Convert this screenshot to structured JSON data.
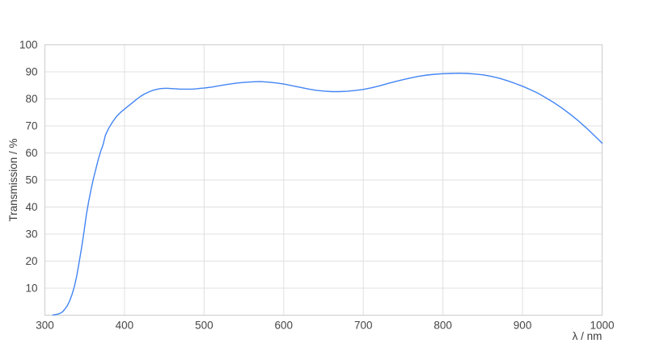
{
  "chart_data": {
    "type": "line",
    "title": "",
    "xlabel": "λ / nm",
    "ylabel": "Transmission / %",
    "xlim": [
      300,
      1000
    ],
    "ylim": [
      0,
      100
    ],
    "x_ticks": [
      300,
      400,
      500,
      600,
      700,
      800,
      900,
      1000
    ],
    "y_ticks": [
      10,
      20,
      30,
      40,
      50,
      60,
      70,
      80,
      90,
      100
    ],
    "grid": true,
    "legend": false,
    "line_color": "#4285f4",
    "series": [
      {
        "name": "Transmission",
        "points": [
          [
            310,
            0.1
          ],
          [
            313,
            0.2
          ],
          [
            316,
            0.4
          ],
          [
            319,
            0.7
          ],
          [
            322,
            1.2
          ],
          [
            325,
            2.2
          ],
          [
            328,
            3.4
          ],
          [
            331,
            5.2
          ],
          [
            334,
            7.6
          ],
          [
            337,
            10.5
          ],
          [
            340,
            14.5
          ],
          [
            343,
            19.5
          ],
          [
            346,
            24.8
          ],
          [
            349,
            30.5
          ],
          [
            352,
            37
          ],
          [
            355,
            42
          ],
          [
            358,
            46.5
          ],
          [
            361,
            50.5
          ],
          [
            364,
            54
          ],
          [
            367,
            57.5
          ],
          [
            370,
            60.5
          ],
          [
            373,
            63
          ],
          [
            376,
            66.5
          ],
          [
            380,
            69
          ],
          [
            385,
            71.5
          ],
          [
            390,
            73.5
          ],
          [
            395,
            75
          ],
          [
            400,
            76.2
          ],
          [
            405,
            77.4
          ],
          [
            410,
            78.6
          ],
          [
            415,
            79.8
          ],
          [
            420,
            80.9
          ],
          [
            425,
            81.8
          ],
          [
            430,
            82.5
          ],
          [
            435,
            83.1
          ],
          [
            440,
            83.5
          ],
          [
            445,
            83.8
          ],
          [
            450,
            83.9
          ],
          [
            455,
            83.9
          ],
          [
            460,
            83.8
          ],
          [
            465,
            83.7
          ],
          [
            470,
            83.6
          ],
          [
            475,
            83.6
          ],
          [
            480,
            83.6
          ],
          [
            485,
            83.6
          ],
          [
            490,
            83.7
          ],
          [
            495,
            83.9
          ],
          [
            500,
            84.0
          ],
          [
            510,
            84.4
          ],
          [
            520,
            84.9
          ],
          [
            530,
            85.4
          ],
          [
            540,
            85.8
          ],
          [
            550,
            86.1
          ],
          [
            560,
            86.3
          ],
          [
            570,
            86.4
          ],
          [
            580,
            86.2
          ],
          [
            590,
            85.9
          ],
          [
            600,
            85.5
          ],
          [
            610,
            84.9
          ],
          [
            620,
            84.3
          ],
          [
            630,
            83.7
          ],
          [
            640,
            83.2
          ],
          [
            650,
            82.9
          ],
          [
            660,
            82.7
          ],
          [
            670,
            82.7
          ],
          [
            680,
            82.8
          ],
          [
            690,
            83.1
          ],
          [
            700,
            83.5
          ],
          [
            710,
            84.1
          ],
          [
            720,
            84.8
          ],
          [
            730,
            85.6
          ],
          [
            740,
            86.4
          ],
          [
            750,
            87.1
          ],
          [
            760,
            87.8
          ],
          [
            770,
            88.4
          ],
          [
            780,
            88.8
          ],
          [
            790,
            89.1
          ],
          [
            800,
            89.3
          ],
          [
            810,
            89.4
          ],
          [
            820,
            89.5
          ],
          [
            830,
            89.4
          ],
          [
            840,
            89.2
          ],
          [
            850,
            88.9
          ],
          [
            860,
            88.4
          ],
          [
            870,
            87.7
          ],
          [
            880,
            86.8
          ],
          [
            890,
            85.8
          ],
          [
            900,
            84.7
          ],
          [
            910,
            83.4
          ],
          [
            920,
            82.0
          ],
          [
            930,
            80.3
          ],
          [
            940,
            78.5
          ],
          [
            950,
            76.5
          ],
          [
            960,
            74.3
          ],
          [
            970,
            71.9
          ],
          [
            980,
            69.3
          ],
          [
            990,
            66.5
          ],
          [
            1000,
            63.6
          ]
        ]
      }
    ]
  },
  "colors": {
    "background": "#ffffff",
    "grid": "#e0e0e0",
    "border": "#cccccc",
    "text": "#464646",
    "line": "#4285f4"
  }
}
